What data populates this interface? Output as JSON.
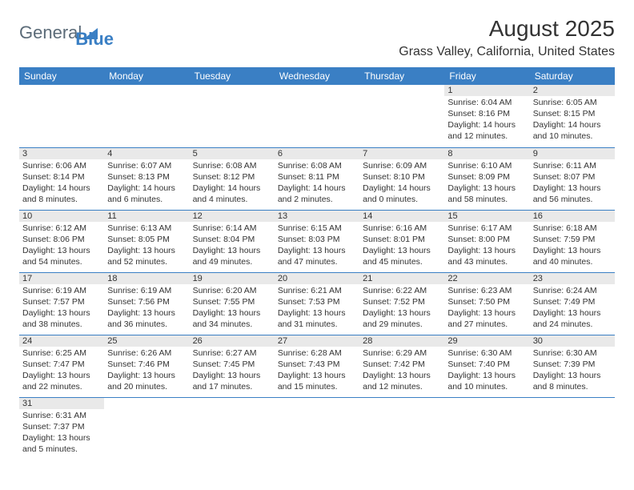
{
  "logo": {
    "textA": "General",
    "textB": "Blue"
  },
  "title": "August 2025",
  "location": "Grass Valley, California, United States",
  "colors": {
    "header_bg": "#3a7fc4",
    "header_text": "#ffffff",
    "daynum_bg": "#e9e9e9",
    "border": "#3a7fc4",
    "text": "#333333",
    "background": "#ffffff"
  },
  "font": {
    "family": "Arial",
    "body_size_pt": 8,
    "title_size_pt": 21,
    "location_size_pt": 12
  },
  "days_of_week": [
    "Sunday",
    "Monday",
    "Tuesday",
    "Wednesday",
    "Thursday",
    "Friday",
    "Saturday"
  ],
  "weeks": [
    [
      null,
      null,
      null,
      null,
      null,
      {
        "n": "1",
        "sunrise": "Sunrise: 6:04 AM",
        "sunset": "Sunset: 8:16 PM",
        "day1": "Daylight: 14 hours",
        "day2": "and 12 minutes."
      },
      {
        "n": "2",
        "sunrise": "Sunrise: 6:05 AM",
        "sunset": "Sunset: 8:15 PM",
        "day1": "Daylight: 14 hours",
        "day2": "and 10 minutes."
      }
    ],
    [
      {
        "n": "3",
        "sunrise": "Sunrise: 6:06 AM",
        "sunset": "Sunset: 8:14 PM",
        "day1": "Daylight: 14 hours",
        "day2": "and 8 minutes."
      },
      {
        "n": "4",
        "sunrise": "Sunrise: 6:07 AM",
        "sunset": "Sunset: 8:13 PM",
        "day1": "Daylight: 14 hours",
        "day2": "and 6 minutes."
      },
      {
        "n": "5",
        "sunrise": "Sunrise: 6:08 AM",
        "sunset": "Sunset: 8:12 PM",
        "day1": "Daylight: 14 hours",
        "day2": "and 4 minutes."
      },
      {
        "n": "6",
        "sunrise": "Sunrise: 6:08 AM",
        "sunset": "Sunset: 8:11 PM",
        "day1": "Daylight: 14 hours",
        "day2": "and 2 minutes."
      },
      {
        "n": "7",
        "sunrise": "Sunrise: 6:09 AM",
        "sunset": "Sunset: 8:10 PM",
        "day1": "Daylight: 14 hours",
        "day2": "and 0 minutes."
      },
      {
        "n": "8",
        "sunrise": "Sunrise: 6:10 AM",
        "sunset": "Sunset: 8:09 PM",
        "day1": "Daylight: 13 hours",
        "day2": "and 58 minutes."
      },
      {
        "n": "9",
        "sunrise": "Sunrise: 6:11 AM",
        "sunset": "Sunset: 8:07 PM",
        "day1": "Daylight: 13 hours",
        "day2": "and 56 minutes."
      }
    ],
    [
      {
        "n": "10",
        "sunrise": "Sunrise: 6:12 AM",
        "sunset": "Sunset: 8:06 PM",
        "day1": "Daylight: 13 hours",
        "day2": "and 54 minutes."
      },
      {
        "n": "11",
        "sunrise": "Sunrise: 6:13 AM",
        "sunset": "Sunset: 8:05 PM",
        "day1": "Daylight: 13 hours",
        "day2": "and 52 minutes."
      },
      {
        "n": "12",
        "sunrise": "Sunrise: 6:14 AM",
        "sunset": "Sunset: 8:04 PM",
        "day1": "Daylight: 13 hours",
        "day2": "and 49 minutes."
      },
      {
        "n": "13",
        "sunrise": "Sunrise: 6:15 AM",
        "sunset": "Sunset: 8:03 PM",
        "day1": "Daylight: 13 hours",
        "day2": "and 47 minutes."
      },
      {
        "n": "14",
        "sunrise": "Sunrise: 6:16 AM",
        "sunset": "Sunset: 8:01 PM",
        "day1": "Daylight: 13 hours",
        "day2": "and 45 minutes."
      },
      {
        "n": "15",
        "sunrise": "Sunrise: 6:17 AM",
        "sunset": "Sunset: 8:00 PM",
        "day1": "Daylight: 13 hours",
        "day2": "and 43 minutes."
      },
      {
        "n": "16",
        "sunrise": "Sunrise: 6:18 AM",
        "sunset": "Sunset: 7:59 PM",
        "day1": "Daylight: 13 hours",
        "day2": "and 40 minutes."
      }
    ],
    [
      {
        "n": "17",
        "sunrise": "Sunrise: 6:19 AM",
        "sunset": "Sunset: 7:57 PM",
        "day1": "Daylight: 13 hours",
        "day2": "and 38 minutes."
      },
      {
        "n": "18",
        "sunrise": "Sunrise: 6:19 AM",
        "sunset": "Sunset: 7:56 PM",
        "day1": "Daylight: 13 hours",
        "day2": "and 36 minutes."
      },
      {
        "n": "19",
        "sunrise": "Sunrise: 6:20 AM",
        "sunset": "Sunset: 7:55 PM",
        "day1": "Daylight: 13 hours",
        "day2": "and 34 minutes."
      },
      {
        "n": "20",
        "sunrise": "Sunrise: 6:21 AM",
        "sunset": "Sunset: 7:53 PM",
        "day1": "Daylight: 13 hours",
        "day2": "and 31 minutes."
      },
      {
        "n": "21",
        "sunrise": "Sunrise: 6:22 AM",
        "sunset": "Sunset: 7:52 PM",
        "day1": "Daylight: 13 hours",
        "day2": "and 29 minutes."
      },
      {
        "n": "22",
        "sunrise": "Sunrise: 6:23 AM",
        "sunset": "Sunset: 7:50 PM",
        "day1": "Daylight: 13 hours",
        "day2": "and 27 minutes."
      },
      {
        "n": "23",
        "sunrise": "Sunrise: 6:24 AM",
        "sunset": "Sunset: 7:49 PM",
        "day1": "Daylight: 13 hours",
        "day2": "and 24 minutes."
      }
    ],
    [
      {
        "n": "24",
        "sunrise": "Sunrise: 6:25 AM",
        "sunset": "Sunset: 7:47 PM",
        "day1": "Daylight: 13 hours",
        "day2": "and 22 minutes."
      },
      {
        "n": "25",
        "sunrise": "Sunrise: 6:26 AM",
        "sunset": "Sunset: 7:46 PM",
        "day1": "Daylight: 13 hours",
        "day2": "and 20 minutes."
      },
      {
        "n": "26",
        "sunrise": "Sunrise: 6:27 AM",
        "sunset": "Sunset: 7:45 PM",
        "day1": "Daylight: 13 hours",
        "day2": "and 17 minutes."
      },
      {
        "n": "27",
        "sunrise": "Sunrise: 6:28 AM",
        "sunset": "Sunset: 7:43 PM",
        "day1": "Daylight: 13 hours",
        "day2": "and 15 minutes."
      },
      {
        "n": "28",
        "sunrise": "Sunrise: 6:29 AM",
        "sunset": "Sunset: 7:42 PM",
        "day1": "Daylight: 13 hours",
        "day2": "and 12 minutes."
      },
      {
        "n": "29",
        "sunrise": "Sunrise: 6:30 AM",
        "sunset": "Sunset: 7:40 PM",
        "day1": "Daylight: 13 hours",
        "day2": "and 10 minutes."
      },
      {
        "n": "30",
        "sunrise": "Sunrise: 6:30 AM",
        "sunset": "Sunset: 7:39 PM",
        "day1": "Daylight: 13 hours",
        "day2": "and 8 minutes."
      }
    ],
    [
      {
        "n": "31",
        "sunrise": "Sunrise: 6:31 AM",
        "sunset": "Sunset: 7:37 PM",
        "day1": "Daylight: 13 hours",
        "day2": "and 5 minutes."
      },
      null,
      null,
      null,
      null,
      null,
      null
    ]
  ]
}
